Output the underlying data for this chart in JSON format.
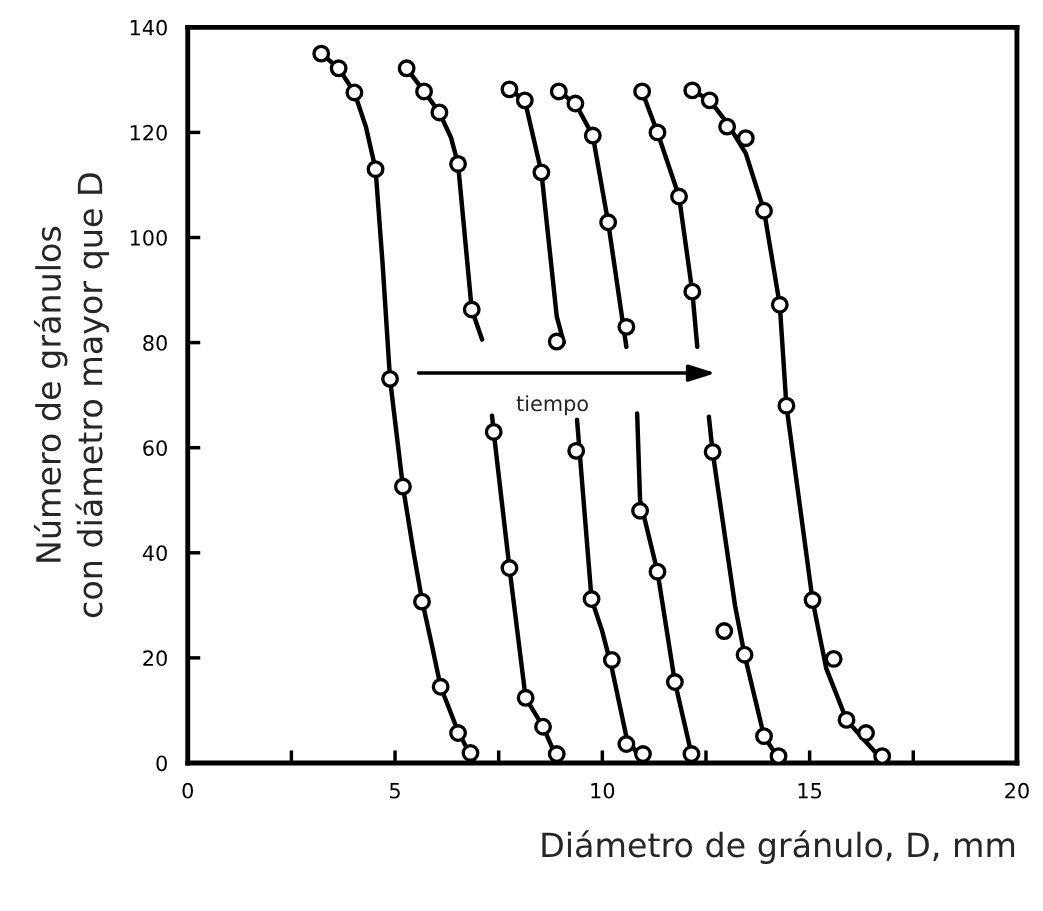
{
  "chart_data": {
    "type": "scatter",
    "xlabel": "Diámetro de gránulo, D, mm",
    "ylabel": "Número de gránulos\ncon diámetro mayor que D",
    "annotations": [
      "tiempo"
    ],
    "xlim": [
      0,
      20
    ],
    "ylim": [
      0,
      140
    ],
    "xticks": [
      0,
      {
        "value": 2.5,
        "label": null
      },
      5,
      {
        "value": 7.5,
        "label": null
      },
      10,
      {
        "value": 12.5,
        "label": null
      },
      15,
      {
        "value": 17.5,
        "label": null
      },
      20
    ],
    "yticks": [
      0,
      20,
      40,
      60,
      80,
      100,
      120,
      140
    ],
    "grid": false,
    "legend": false,
    "series": [
      {
        "type": "line",
        "color": "#000000",
        "marker": "none",
        "line_style": "solid",
        "x": [
          3.22,
          3.64,
          4.02,
          4.3,
          4.53,
          4.7,
          4.88,
          5.19,
          5.45,
          5.65,
          5.9,
          6.1,
          6.52,
          6.92
        ],
        "values": [
          135,
          132.2,
          127.6,
          121,
          113,
          95,
          73,
          52.6,
          40,
          31,
          22,
          14.5,
          6,
          0
        ]
      },
      {
        "type": "line",
        "color": "#000000",
        "marker": "none",
        "line_style": "solid",
        "x": [
          5.28,
          5.7,
          6.07,
          6.35,
          6.52,
          6.85,
          7.1,
          7.2,
          7.34,
          7.38,
          7.76,
          8.15,
          8.57,
          8.95
        ],
        "values": [
          132.2,
          127.8,
          123.8,
          119,
          114,
          86.3,
          80.6,
          null,
          66.1,
          63,
          37.1,
          12.4,
          6.9,
          0
        ]
      },
      {
        "type": "line",
        "color": "#000000",
        "marker": "none",
        "line_style": "solid",
        "x": [
          7.76,
          8.13,
          8.53,
          8.9,
          9.07,
          9.2,
          9.39,
          9.74,
          10.0,
          10.23,
          10.58,
          10.98
        ],
        "values": [
          128.2,
          126.1,
          112.4,
          85,
          80,
          null,
          65.3,
          31.2,
          25,
          18,
          5,
          0
        ]
      },
      {
        "type": "line",
        "color": "#000000",
        "marker": "none",
        "line_style": "solid",
        "x": [
          8.95,
          9.35,
          9.77,
          10.14,
          10.58,
          10.7,
          10.84,
          10.91,
          11.33,
          11.75,
          12.2
        ],
        "values": [
          127.8,
          125.5,
          119.4,
          102.9,
          79.2,
          null,
          66.5,
          50,
          36.4,
          15.4,
          0
        ]
      },
      {
        "type": "line",
        "color": "#000000",
        "marker": "none",
        "line_style": "solid",
        "x": [
          10.96,
          11.33,
          11.85,
          12.17,
          12.29,
          12.4,
          12.57,
          12.66,
          13.2,
          13.43,
          13.9,
          14.32
        ],
        "values": [
          127.8,
          120,
          107.8,
          89.7,
          79.2,
          null,
          65.9,
          59.2,
          30,
          20.6,
          5.1,
          0
        ]
      },
      {
        "type": "line",
        "color": "#000000",
        "marker": "none",
        "line_style": "solid",
        "x": [
          12.17,
          12.59,
          13.01,
          13.46,
          13.9,
          14.28,
          14.44,
          15.07,
          15.4,
          15.89,
          16.36,
          16.82
        ],
        "values": [
          128,
          126.1,
          121.8,
          116,
          105.1,
          87.2,
          68,
          31,
          18,
          8.2,
          4,
          0
        ]
      },
      {
        "color": "#000000",
        "marker": "circle",
        "x": [
          3.22,
          3.64,
          4.02,
          4.53,
          4.88,
          5.19,
          5.65,
          6.1,
          6.52,
          6.82
        ],
        "values": [
          135,
          132.2,
          127.6,
          113,
          73.1,
          52.6,
          30.7,
          14.5,
          5.7,
          1.9
        ]
      },
      {
        "color": "#000000",
        "marker": "circle",
        "x": [
          5.28,
          5.7,
          6.07,
          6.52,
          6.85,
          7.38,
          7.76,
          8.15,
          8.57,
          8.9
        ],
        "values": [
          132.2,
          127.8,
          123.8,
          114,
          86.3,
          63,
          37.1,
          12.4,
          6.9,
          1.7
        ]
      },
      {
        "color": "#000000",
        "marker": "circle",
        "x": [
          7.76,
          8.13,
          8.53,
          8.9,
          9.37,
          9.74,
          10.23,
          10.58,
          10.98
        ],
        "values": [
          128.2,
          126.1,
          112.4,
          80.2,
          59.4,
          31.2,
          19.6,
          3.6,
          1.7
        ]
      },
      {
        "color": "#000000",
        "marker": "circle",
        "x": [
          8.95,
          9.35,
          9.77,
          10.14,
          10.58,
          10.91,
          11.33,
          11.75,
          12.15
        ],
        "values": [
          127.8,
          125.5,
          119.4,
          102.9,
          83,
          48,
          36.4,
          15.4,
          1.7
        ]
      },
      {
        "color": "#000000",
        "marker": "circle",
        "x": [
          10.96,
          11.33,
          11.85,
          12.17,
          12.66,
          12.94,
          13.43,
          13.9,
          14.25
        ],
        "values": [
          127.8,
          120,
          107.8,
          89.7,
          59.2,
          25.1,
          20.6,
          5.1,
          1.3
        ]
      },
      {
        "color": "#000000",
        "marker": "circle",
        "x": [
          12.17,
          12.59,
          13.01,
          13.46,
          13.9,
          14.28,
          14.44,
          15.07,
          15.58,
          15.89,
          16.36,
          16.75
        ],
        "values": [
          128,
          126.1,
          121.1,
          118.9,
          105.1,
          87.2,
          68,
          31,
          19.8,
          8.2,
          5.7,
          1.3
        ]
      }
    ]
  }
}
